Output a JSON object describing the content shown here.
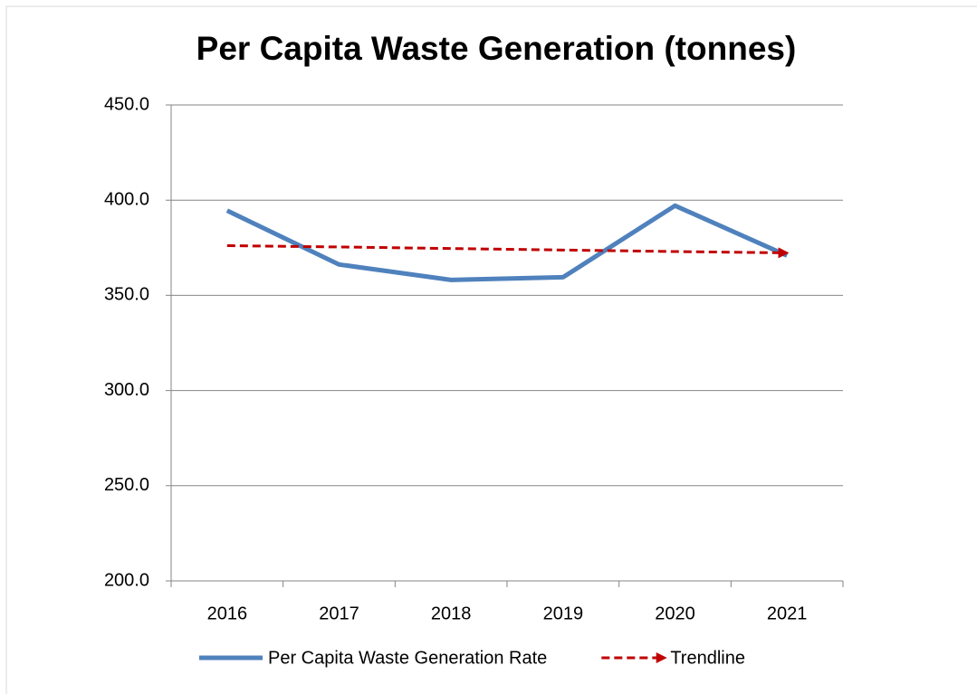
{
  "chart_data": {
    "type": "line",
    "title": "Per Capita Waste Generation (tonnes)",
    "categories": [
      "2016",
      "2017",
      "2018",
      "2019",
      "2020",
      "2021"
    ],
    "series": [
      {
        "name": "Per Capita Waste Generation Rate",
        "color": "#4f81bd",
        "values": [
          394.5,
          366.2,
          358.1,
          359.5,
          397.1,
          370.9
        ]
      },
      {
        "name": "Trendline",
        "color": "#c00000",
        "dashed": true,
        "arrow": true,
        "values": [
          376.1,
          375.4,
          374.6,
          373.8,
          373.0,
          372.3
        ]
      }
    ],
    "ylim": [
      200,
      450
    ],
    "yticks": [
      {
        "value": 200,
        "label": "200.0"
      },
      {
        "value": 250,
        "label": "250.0"
      },
      {
        "value": 300,
        "label": "300.0"
      },
      {
        "value": 350,
        "label": "350.0"
      },
      {
        "value": 400,
        "label": "400.0"
      },
      {
        "value": 450,
        "label": "450.0"
      }
    ],
    "grid": true,
    "legend": "bottom"
  }
}
